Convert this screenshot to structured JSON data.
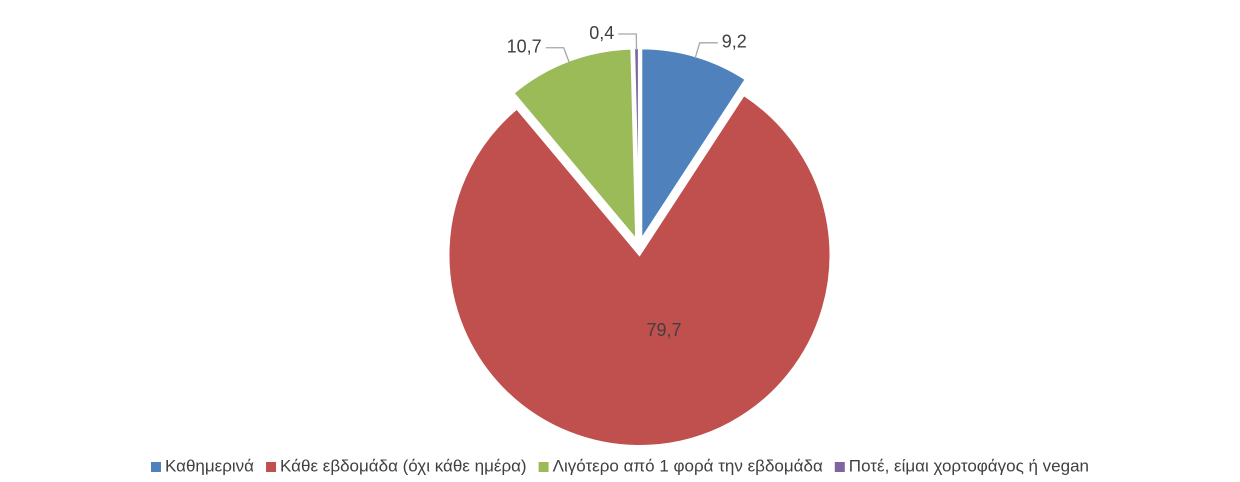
{
  "chart_data": {
    "type": "pie",
    "categories": [
      "Καθημερινά",
      "Κάθε εβδομάδα (όχι κάθε ημέρα)",
      "Λιγότερο από 1 φορά την εβδομάδα",
      "Ποτέ, είμαι χορτοφάγος ή vegan"
    ],
    "values": [
      9.2,
      79.7,
      10.7,
      0.4
    ],
    "value_labels": [
      "9,2",
      "79,7",
      "10,7",
      "0,4"
    ],
    "colors": [
      "#4f81bd",
      "#c0504d",
      "#9bbb59",
      "#8064a2"
    ],
    "legend": "bottom"
  }
}
